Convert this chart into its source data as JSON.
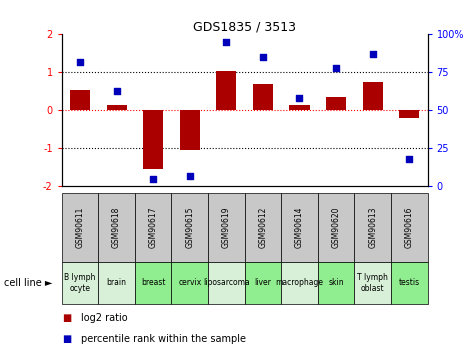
{
  "title": "GDS1835 / 3513",
  "samples": [
    "GSM90611",
    "GSM90618",
    "GSM90617",
    "GSM90615",
    "GSM90619",
    "GSM90612",
    "GSM90614",
    "GSM90620",
    "GSM90613",
    "GSM90616"
  ],
  "cell_lines": [
    "B lymph\nocyte",
    "brain",
    "breast",
    "cervix",
    "liposarcoma\n",
    "liver",
    "macrophage\n",
    "skin",
    "T lymph\noblast",
    "testis"
  ],
  "cell_line_colors": [
    "#d8f0d8",
    "#d8f0d8",
    "#90ee90",
    "#90ee90",
    "#d8f0d8",
    "#90ee90",
    "#d8f0d8",
    "#90ee90",
    "#d8f0d8",
    "#90ee90"
  ],
  "gsm_box_color": "#c8c8c8",
  "log2_ratio": [
    0.55,
    0.15,
    -1.55,
    -1.05,
    1.05,
    0.7,
    0.15,
    0.35,
    0.75,
    -0.2
  ],
  "percentile_rank": [
    82,
    63,
    5,
    7,
    95,
    85,
    58,
    78,
    87,
    18
  ],
  "ylim_left": [
    -2,
    2
  ],
  "ylim_right": [
    0,
    100
  ],
  "bar_color": "#aa0000",
  "dot_color": "#0000bb",
  "bg_color": "#ffffff",
  "bar_width": 0.55,
  "legend_text_red": "log2 ratio",
  "legend_text_blue": "percentile rank within the sample"
}
